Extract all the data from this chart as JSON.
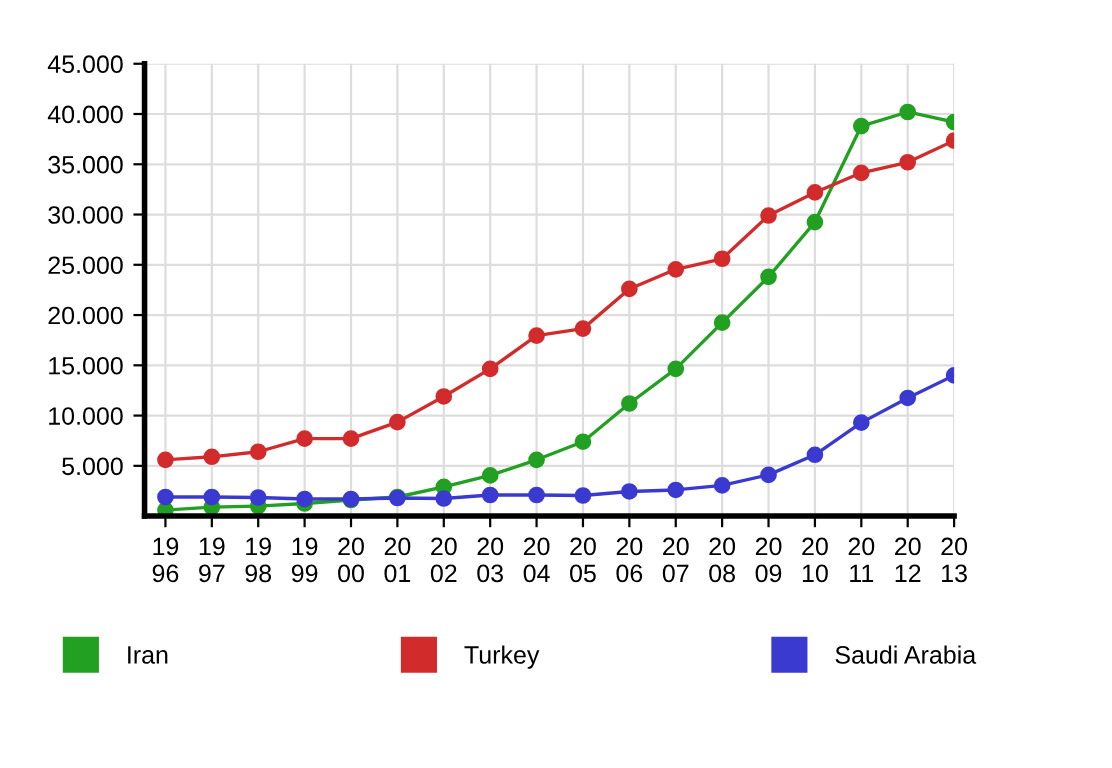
{
  "chart_data": {
    "type": "line",
    "categories": [
      "1996",
      "1997",
      "1998",
      "1999",
      "2000",
      "2001",
      "2002",
      "2003",
      "2004",
      "2005",
      "2006",
      "2007",
      "2008",
      "2009",
      "2010",
      "2011",
      "2012",
      "2013"
    ],
    "series": [
      {
        "name": "Iran",
        "color": "#22a022",
        "values": [
          600,
          900,
          1000,
          1250,
          1600,
          1900,
          2900,
          4050,
          5600,
          7400,
          11200,
          14650,
          19250,
          23800,
          29250,
          38800,
          40200,
          39200
        ]
      },
      {
        "name": "Turkey",
        "color": "#d22b2b",
        "values": [
          5600,
          5900,
          6400,
          7700,
          7700,
          9350,
          11900,
          14650,
          17950,
          18650,
          22600,
          24550,
          25600,
          29900,
          32200,
          34150,
          35200,
          37350
        ]
      },
      {
        "name": "Saudi Arabia",
        "color": "#3a3ad0",
        "values": [
          1900,
          1900,
          1850,
          1700,
          1700,
          1800,
          1750,
          2100,
          2100,
          2050,
          2450,
          2600,
          3050,
          4100,
          6100,
          9300,
          11750,
          14000
        ]
      }
    ],
    "ylim": [
      0,
      45000
    ],
    "yticks": [
      {
        "value": 5000,
        "label": "5.000"
      },
      {
        "value": 10000,
        "label": "10.000"
      },
      {
        "value": 15000,
        "label": "15.000"
      },
      {
        "value": 20000,
        "label": "20.000"
      },
      {
        "value": 25000,
        "label": "25.000"
      },
      {
        "value": 30000,
        "label": "30.000"
      },
      {
        "value": 35000,
        "label": "35.000"
      },
      {
        "value": 40000,
        "label": "40.000"
      },
      {
        "value": 45000,
        "label": "45.000"
      }
    ],
    "grid": true,
    "legend": "bottom",
    "marker": "circle",
    "line_style": "solid"
  }
}
